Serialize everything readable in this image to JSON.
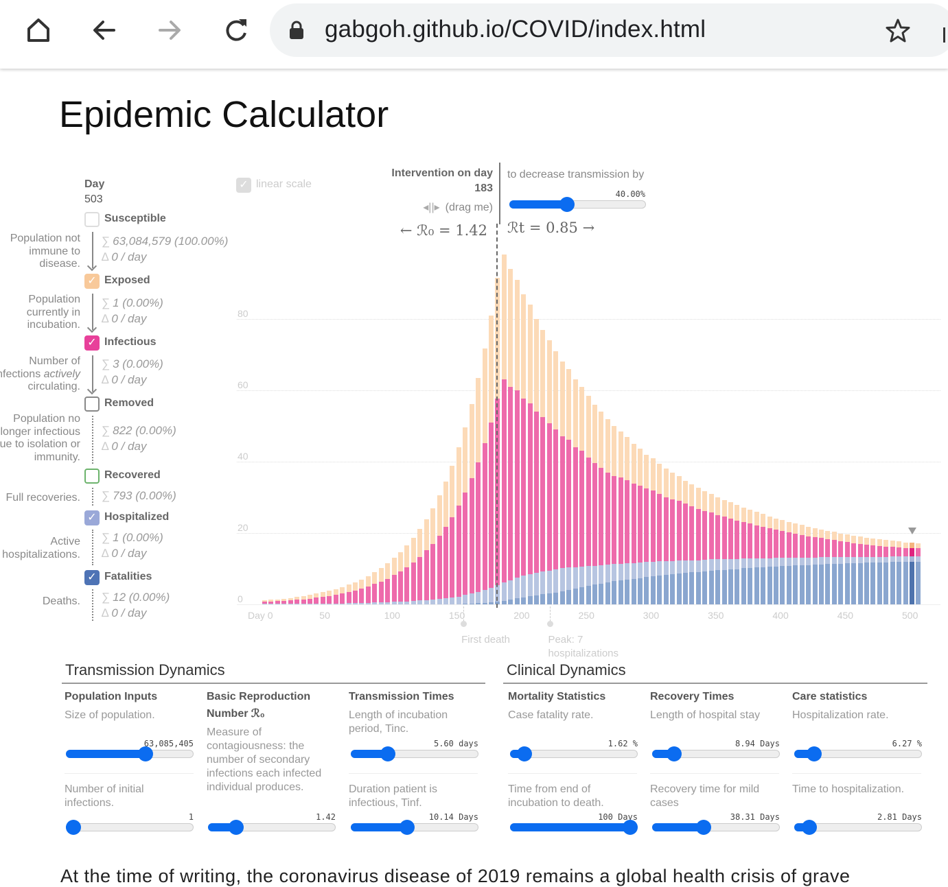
{
  "browser": {
    "url": "gabgoh.github.io/COVID/index.html",
    "icons": [
      "home-icon",
      "back-icon",
      "forward-icon",
      "reload-icon",
      "lock-icon",
      "star-icon"
    ]
  },
  "page": {
    "title": "Epidemic Calculator"
  },
  "legend": {
    "day_label": "Day",
    "day_value": "503",
    "items": [
      {
        "name": "Susceptible",
        "checked": false,
        "color": "#cccccc",
        "desc": [
          "Population not",
          "immune to",
          "disease."
        ],
        "sum": "63,084,579 (100.00%)",
        "delta": "0 / day"
      },
      {
        "name": "Exposed",
        "checked": true,
        "color": "#f8c99a",
        "desc": [
          "Population",
          "currently in",
          "incubation."
        ],
        "sum": "1 (0.00%)",
        "delta": "0 / day"
      },
      {
        "name": "Infectious",
        "checked": true,
        "color": "#e8409a",
        "desc": [
          "Number of",
          "infections ",
          "actively",
          "circulating."
        ],
        "sum": "3 (0.00%)",
        "delta": "0 / day"
      },
      {
        "name": "Removed",
        "checked": false,
        "color": "#888888",
        "desc": [
          "Population no",
          "longer infectious",
          "due to isolation or",
          "immunity."
        ],
        "sum": "822 (0.00%)",
        "delta": "0 / day"
      },
      {
        "name": "Recovered",
        "checked": false,
        "color": "#6cb36c",
        "desc": [
          "Full recoveries."
        ],
        "sum": "793 (0.00%)"
      },
      {
        "name": "Hospitalized",
        "checked": true,
        "color": "#9aa8d8",
        "desc": [
          "Active",
          "hospitalizations."
        ],
        "sum": "1 (0.00%)",
        "delta": "0 / day"
      },
      {
        "name": "Fatalities",
        "checked": true,
        "color": "#4e73b5",
        "desc": [
          "Deaths."
        ],
        "sum": "12 (0.00%)",
        "delta": "0 / day"
      }
    ],
    "sum_symbol": "∑",
    "delta_symbol": "∆",
    "check_glyph": "✓"
  },
  "controls": {
    "linear_scale_label": "linear scale",
    "linear_scale_checked": true,
    "intervention_label": "Intervention on day",
    "intervention_day": "183",
    "drag_hint": "(drag me)",
    "decrease_label": "to decrease transmission by",
    "decrease_value": "40.00%",
    "decrease_fraction": 0.41,
    "r0_text": "← ℛ₀ = 1.42",
    "rt_text": "ℛt = 0.85 →"
  },
  "chart_data": {
    "type": "bar",
    "stacked": true,
    "x_tick_labels": [
      "Day 0",
      "50",
      "100",
      "150",
      "200",
      "250",
      "300",
      "350",
      "400",
      "450",
      "500"
    ],
    "x_ticks": [
      0,
      50,
      100,
      150,
      200,
      250,
      300,
      350,
      400,
      450,
      500
    ],
    "y_tick_labels": [
      "0",
      "20",
      "40",
      "60",
      "80"
    ],
    "y_ticks": [
      0,
      20,
      40,
      60,
      80
    ],
    "grid": true,
    "intervention_day": 183,
    "highlight_day": 500,
    "colors": {
      "fatalities": "#8aa6cf",
      "hospitalized": "#b7c5e1",
      "infectious": "#ee6aab",
      "exposed": "#fcdab7"
    },
    "highlight_colors": {
      "fatalities": "#4e73ad",
      "hospitalized": "#a6b5d8",
      "infectious": "#e0237f",
      "exposed": "#f5b57e"
    },
    "annotations": [
      {
        "day": 157,
        "label": [
          "First death"
        ]
      },
      {
        "day": 224,
        "label": [
          "Peak: 7",
          "hospitalizations"
        ]
      }
    ],
    "x": [
      0,
      5,
      10,
      15,
      20,
      25,
      30,
      35,
      40,
      45,
      50,
      55,
      60,
      65,
      70,
      75,
      80,
      85,
      90,
      95,
      100,
      105,
      110,
      115,
      120,
      125,
      130,
      135,
      140,
      145,
      150,
      155,
      160,
      165,
      170,
      175,
      180,
      185,
      190,
      195,
      200,
      205,
      210,
      215,
      220,
      225,
      230,
      235,
      240,
      245,
      250,
      255,
      260,
      265,
      270,
      275,
      280,
      285,
      290,
      295,
      300,
      305,
      310,
      315,
      320,
      325,
      330,
      335,
      340,
      345,
      350,
      355,
      360,
      365,
      370,
      375,
      380,
      385,
      390,
      395,
      400,
      405,
      410,
      415,
      420,
      425,
      430,
      435,
      440,
      445,
      450,
      455,
      460,
      465,
      470,
      475,
      480,
      485,
      490,
      495,
      500,
      505
    ],
    "series": [
      {
        "name": "Fatalities",
        "values": [
          0,
          0,
          0,
          0,
          0,
          0,
          0,
          0,
          0,
          0,
          0,
          0,
          0,
          0,
          0,
          0,
          0,
          0,
          0,
          0,
          0,
          0,
          0,
          0,
          0,
          0,
          0,
          0,
          0,
          0,
          0,
          0.1,
          0.2,
          0.3,
          0.4,
          0.5,
          0.7,
          1.0,
          1.3,
          1.7,
          2.0,
          2.3,
          2.5,
          2.8,
          3.0,
          3.3,
          3.7,
          4.1,
          4.4,
          4.8,
          5.2,
          5.5,
          5.8,
          6.2,
          6.5,
          6.8,
          7.0,
          7.2,
          7.4,
          7.6,
          7.8,
          8.0,
          8.2,
          8.4,
          8.6,
          8.8,
          9.0,
          9.1,
          9.3,
          9.4,
          9.6,
          9.7,
          9.8,
          9.9,
          10.1,
          10.2,
          10.3,
          10.4,
          10.5,
          10.6,
          10.7,
          10.8,
          10.9,
          10.9,
          11.0,
          11.1,
          11.2,
          11.3,
          11.3,
          11.4,
          11.5,
          11.6,
          11.6,
          11.7,
          11.7,
          11.8,
          11.8,
          11.9,
          11.9,
          12.0,
          12.0,
          12.0
        ]
      },
      {
        "name": "Hospitalized",
        "values": [
          0.1,
          0.1,
          0.1,
          0.1,
          0.1,
          0.1,
          0.1,
          0.1,
          0.2,
          0.2,
          0.2,
          0.2,
          0.2,
          0.3,
          0.3,
          0.4,
          0.4,
          0.5,
          0.5,
          0.6,
          0.7,
          0.7,
          0.8,
          0.9,
          1.1,
          1.2,
          1.4,
          1.5,
          1.7,
          1.9,
          2.2,
          2.5,
          2.8,
          3.2,
          3.6,
          4.1,
          4.6,
          5.2,
          5.5,
          5.8,
          6.1,
          6.2,
          6.3,
          6.4,
          6.5,
          6.5,
          6.4,
          6.2,
          6.0,
          5.8,
          5.5,
          5.3,
          5.1,
          4.9,
          4.8,
          4.6,
          4.5,
          4.4,
          4.3,
          4.3,
          4.2,
          4.1,
          4.0,
          3.8,
          3.7,
          3.5,
          3.4,
          3.3,
          3.2,
          3.2,
          3.1,
          3.0,
          2.9,
          2.8,
          2.7,
          2.6,
          2.6,
          2.5,
          2.4,
          2.4,
          2.3,
          2.2,
          2.2,
          2.1,
          2.1,
          2.0,
          2.0,
          1.9,
          1.9,
          1.8,
          1.7,
          1.7,
          1.7,
          1.6,
          1.6,
          1.5,
          1.5,
          1.5,
          1.5,
          1.4,
          1.4,
          1.4
        ]
      },
      {
        "name": "Infectious",
        "values": [
          0.6,
          0.7,
          0.8,
          0.9,
          1.0,
          1.2,
          1.3,
          1.5,
          1.7,
          1.9,
          2.2,
          2.5,
          2.9,
          3.2,
          3.6,
          4.0,
          4.6,
          5.2,
          5.9,
          6.6,
          7.5,
          8.5,
          9.6,
          10.9,
          12.2,
          13.9,
          15.6,
          17.7,
          20.0,
          22.6,
          25.5,
          28.7,
          32.3,
          36.4,
          41.2,
          46.4,
          52.3,
          56.8,
          54.2,
          52.5,
          49.6,
          47.9,
          45.2,
          43.3,
          41.3,
          39.2,
          37.0,
          35.8,
          33.7,
          32.4,
          30.5,
          28.8,
          27.4,
          25.9,
          24.7,
          24.1,
          23.4,
          22.2,
          21.6,
          20.6,
          20.0,
          18.8,
          17.8,
          17.3,
          16.7,
          15.9,
          15.1,
          14.4,
          13.7,
          13.1,
          12.3,
          11.9,
          11.4,
          10.8,
          10.3,
          9.8,
          9.3,
          8.9,
          8.5,
          7.9,
          7.5,
          7.1,
          6.7,
          6.5,
          6.0,
          5.8,
          5.4,
          5.1,
          4.8,
          4.5,
          4.3,
          3.9,
          3.7,
          3.5,
          3.2,
          3.1,
          2.9,
          2.7,
          2.5,
          2.4,
          2.3,
          2.3
        ]
      },
      {
        "name": "Exposed",
        "values": [
          0.4,
          0.5,
          0.5,
          0.6,
          0.7,
          0.8,
          0.9,
          1.0,
          1.1,
          1.3,
          1.4,
          1.6,
          1.8,
          2.0,
          2.3,
          2.6,
          2.9,
          3.3,
          3.7,
          4.3,
          4.8,
          5.4,
          6.1,
          6.9,
          7.8,
          8.8,
          10.0,
          11.3,
          12.7,
          14.4,
          16.3,
          18.4,
          20.8,
          23.5,
          26.5,
          30.0,
          33.9,
          35.0,
          33.0,
          31.0,
          29.3,
          27.6,
          26.0,
          24.5,
          23.2,
          22.0,
          20.9,
          19.9,
          18.9,
          18.0,
          17.2,
          16.4,
          15.7,
          15.0,
          14.0,
          13.0,
          12.1,
          11.2,
          10.3,
          9.5,
          9.0,
          8.5,
          8.0,
          7.5,
          7.0,
          6.5,
          6.2,
          5.9,
          5.6,
          5.3,
          5.0,
          4.7,
          4.5,
          4.3,
          4.1,
          3.9,
          3.7,
          3.5,
          3.3,
          3.2,
          3.1,
          3.0,
          2.9,
          2.8,
          2.7,
          2.5,
          2.4,
          2.3,
          2.3,
          2.2,
          2.1,
          2.1,
          2.0,
          1.9,
          1.9,
          1.8,
          1.8,
          1.7,
          1.7,
          1.6,
          1.6,
          1.5
        ]
      }
    ]
  },
  "transmission": {
    "title": "Transmission Dynamics",
    "columns": [
      {
        "heading": "Population Inputs",
        "sliders": [
          {
            "desc": "Size of population.",
            "value": "63,085,405",
            "fraction": 0.64
          },
          {
            "desc": "Number of initial infections.",
            "value": "1",
            "fraction": 0.0
          }
        ]
      },
      {
        "heading": "Basic Reproduction Number ℛ₀",
        "desc": "Measure of contagiousness: the number of secondary infections each infected individual produces.",
        "sliders": [
          {
            "value": "1.42",
            "fraction": 0.18
          }
        ]
      },
      {
        "heading": "Transmission Times",
        "sliders": [
          {
            "desc": "Length of incubation period, Tinc.",
            "value": "5.60 days",
            "fraction": 0.26
          },
          {
            "desc": "Duration patient is infectious, Tinf.",
            "value": "10.14 Days",
            "fraction": 0.43
          }
        ]
      }
    ]
  },
  "clinical": {
    "title": "Clinical Dynamics",
    "columns": [
      {
        "heading": "Mortality Statistics",
        "sliders": [
          {
            "desc": "Case fatality rate.",
            "value": "1.62 %",
            "fraction": 0.06
          },
          {
            "desc": "Time from end of incubation to death.",
            "value": "100 Days",
            "fraction": 1.0
          }
        ]
      },
      {
        "heading": "Recovery Times",
        "sliders": [
          {
            "desc": "Length of hospital stay",
            "value": "8.94 Days",
            "fraction": 0.13
          },
          {
            "desc": "Recovery time for mild cases",
            "value": "38.31 Days",
            "fraction": 0.39
          }
        ]
      },
      {
        "heading": "Care statistics",
        "sliders": [
          {
            "desc": "Hospitalization rate.",
            "value": "6.27 %",
            "fraction": 0.11
          },
          {
            "desc": "Time to hospitalization.",
            "value": "2.81 Days",
            "fraction": 0.07
          }
        ]
      }
    ]
  },
  "body_text": "At the time of writing, the coronavirus disease of 2019 remains a global health crisis of grave"
}
